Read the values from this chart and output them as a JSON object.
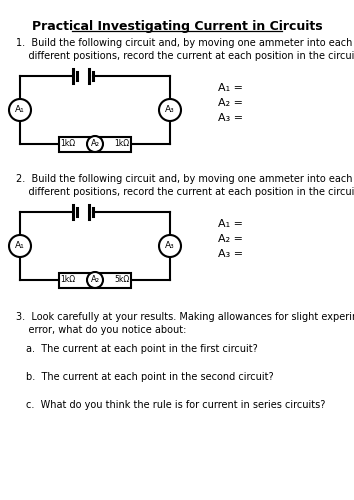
{
  "title": "Practical Investigating Current in Circuits",
  "q1_text": "1.  Build the following circuit and, by moving one ammeter into each of the\n    different positions, record the current at each position in the circuit.",
  "q2_text": "2.  Build the following circuit and, by moving one ammeter into each of the\n    different positions, record the current at each position in the circuit.",
  "q3_text": "3.  Look carefully at your results. Making allowances for slight experimental\n    error, what do you notice about:",
  "q3a": "a.  The current at each point in the first circuit?",
  "q3b": "b.  The current at each point in the second circuit?",
  "q3c": "c.  What do you think the rule is for current in series circuits?",
  "circuit1_resistors": [
    "1kΩ",
    "1kΩ"
  ],
  "circuit2_resistors": [
    "1kΩ",
    "5kΩ"
  ],
  "ammeter_labels": [
    "A₁",
    "A₂",
    "A₃"
  ],
  "results_labels": [
    "A₁ =",
    "A₂ =",
    "A₃ ="
  ],
  "bg_color": "#ffffff",
  "text_color": "#000000",
  "line_color": "#000000"
}
